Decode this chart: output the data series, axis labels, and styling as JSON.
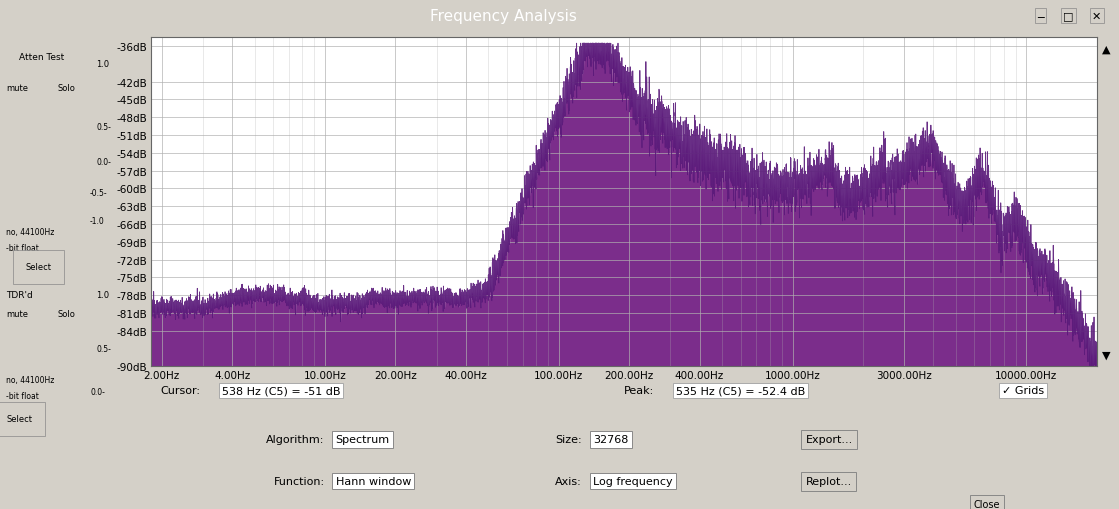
{
  "title": "Frequency Analysis",
  "bg_color": "#d4d0c8",
  "plot_bg": "#ffffff",
  "fill_color": "#7b2d8b",
  "edge_color": "#5a1a7a",
  "grid_color": "#b0b0b0",
  "title_bar_color": "#0a246a",
  "title_text_color": "#ffffff",
  "sidebar_color": "#d4d0c8",
  "ytick_labels": [
    "-36dB",
    "-42dB",
    "-45dB",
    "-48dB",
    "-51dB",
    "-54dB",
    "-57dB",
    "-60dB",
    "-63dB",
    "-66dB",
    "-69dB",
    "-72dB",
    "-75dB",
    "-78dB",
    "-81dB",
    "-84dB",
    "-90dB"
  ],
  "ytick_values": [
    -36,
    -42,
    -45,
    -48,
    -51,
    -54,
    -57,
    -60,
    -63,
    -66,
    -69,
    -72,
    -75,
    -78,
    -81,
    -84,
    -90
  ],
  "xtick_labels": [
    "2.00Hz",
    "4.00Hz",
    "10.00Hz",
    "20.00Hz",
    "40.00Hz",
    "100.00Hz",
    "200.00Hz",
    "400.00Hz",
    "1000.00Hz",
    "3000.00Hz",
    "10000.00Hz"
  ],
  "xtick_values": [
    2.0,
    4.0,
    10.0,
    20.0,
    40.0,
    100.0,
    200.0,
    400.0,
    1000.0,
    3000.0,
    10000.0
  ],
  "freq_min": 1.8,
  "freq_max": 20000.0,
  "db_min": -90,
  "db_max": -34.5,
  "cursor_text": "Cursor:  538 Hz (C5) = -51 dB",
  "peak_text": "Peak:  535 Hz (C5) = -52.4 dB"
}
